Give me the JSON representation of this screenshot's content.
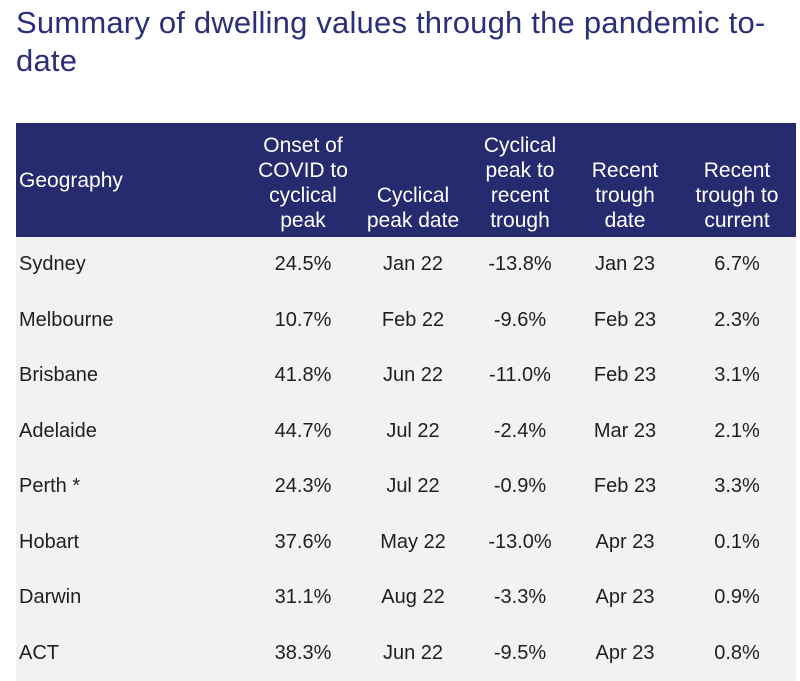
{
  "title": "Summary of dwelling values through the pandemic to-date",
  "table": {
    "headers": [
      "Geography",
      "Onset of COVID to cyclical peak",
      "Cyclical peak date",
      "Cyclical peak to recent trough",
      "Recent trough date",
      "Recent trough to current"
    ],
    "rows": [
      [
        "Sydney",
        "24.5%",
        "Jan 22",
        "-13.8%",
        "Jan 23",
        "6.7%"
      ],
      [
        "Melbourne",
        "10.7%",
        "Feb 22",
        "-9.6%",
        "Feb 23",
        "2.3%"
      ],
      [
        "Brisbane",
        "41.8%",
        "Jun 22",
        "-11.0%",
        "Feb 23",
        "3.1%"
      ],
      [
        "Adelaide",
        "44.7%",
        "Jul 22",
        "-2.4%",
        "Mar 23",
        "2.1%"
      ],
      [
        "Perth *",
        "24.3%",
        "Jul 22",
        "-0.9%",
        "Feb 23",
        "3.3%"
      ],
      [
        "Hobart",
        "37.6%",
        "May 22",
        "-13.0%",
        "Apr 23",
        "0.1%"
      ],
      [
        "Darwin",
        "31.1%",
        "Aug 22",
        "-3.3%",
        "Apr 23",
        "0.9%"
      ],
      [
        "ACT",
        "38.3%",
        "Jun 22",
        "-9.5%",
        "Apr 23",
        "0.8%"
      ]
    ]
  },
  "colors": {
    "header_bg": "#262a6e",
    "title": "#2a2f7a",
    "row_bg": "#f2f2f2"
  }
}
